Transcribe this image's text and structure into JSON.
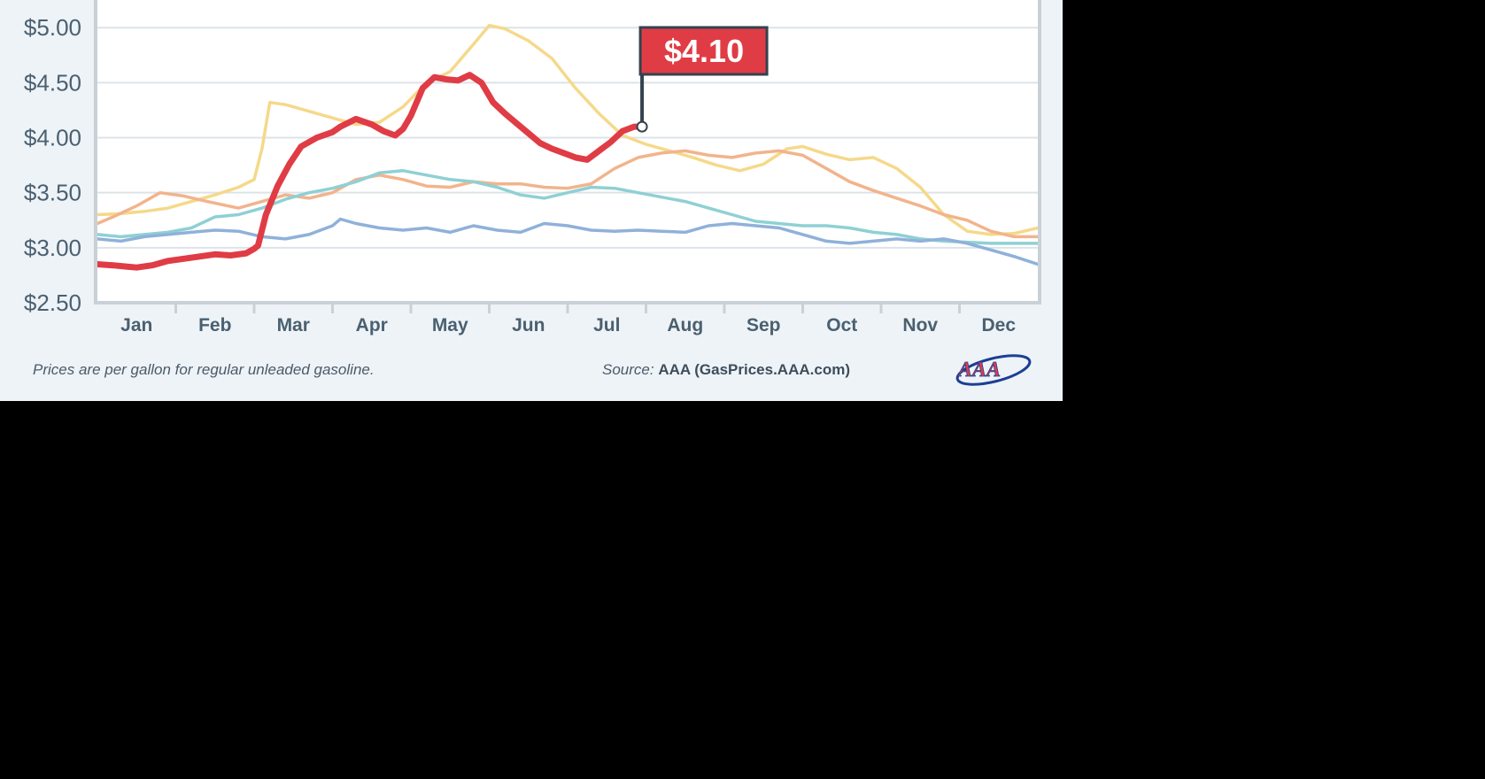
{
  "footer": {
    "note": "Prices are per gallon for regular unleaded gasoline.",
    "source_label": "Source:",
    "source_value": "AAA (GasPrices.AAA.com)",
    "logo_text": "AAA"
  },
  "colors": {
    "current_year": "#e03c45",
    "yellow_series": "#f5d98a",
    "orange_series": "#f2b48c",
    "teal_series": "#8fd0d4",
    "blue_series": "#8fb1da",
    "grid": "#dde3e8",
    "axis": "#c9d1d8",
    "tick_label": "#4a6070",
    "callout_bg": "#e03c45",
    "callout_border": "#34424f",
    "logo_red": "#e03c45",
    "logo_blue": "#1c3f94",
    "panel_bg": "#eef3f8",
    "plot_bg": "#ffffff"
  },
  "chart_data": {
    "type": "line",
    "ylim": [
      2.5,
      5.05
    ],
    "xlim": [
      0,
      12
    ],
    "y_ticks": [
      2.5,
      3.0,
      3.5,
      4.0,
      4.5,
      5.0
    ],
    "y_tick_labels": [
      "$2.50",
      "$3.00",
      "$3.50",
      "$4.00",
      "$4.50",
      "$5.00"
    ],
    "categories": [
      "Jan",
      "Feb",
      "Mar",
      "Apr",
      "May",
      "Jun",
      "Jul",
      "Aug",
      "Sep",
      "Oct",
      "Nov",
      "Dec"
    ],
    "grid": true,
    "series": [
      {
        "key": "yellow",
        "x": [
          0,
          0.3,
          0.6,
          0.9,
          1.2,
          1.5,
          1.8,
          2.0,
          2.1,
          2.2,
          2.4,
          2.7,
          3.0,
          3.3,
          3.6,
          3.9,
          4.2,
          4.5,
          4.8,
          5.0,
          5.2,
          5.5,
          5.8,
          6.1,
          6.4,
          6.7,
          7.0,
          7.3,
          7.6,
          7.9,
          8.2,
          8.5,
          8.8,
          9.0,
          9.3,
          9.6,
          9.9,
          10.2,
          10.5,
          10.8,
          11.1,
          11.4,
          11.7,
          12.0
        ],
        "y": [
          3.3,
          3.31,
          3.33,
          3.36,
          3.42,
          3.48,
          3.55,
          3.62,
          3.9,
          4.32,
          4.3,
          4.24,
          4.18,
          4.12,
          4.14,
          4.28,
          4.5,
          4.6,
          4.85,
          5.02,
          4.99,
          4.88,
          4.72,
          4.45,
          4.22,
          4.02,
          3.94,
          3.88,
          3.82,
          3.75,
          3.7,
          3.76,
          3.9,
          3.92,
          3.85,
          3.8,
          3.82,
          3.72,
          3.55,
          3.3,
          3.15,
          3.12,
          3.13,
          3.18
        ]
      },
      {
        "key": "orange",
        "x": [
          0,
          0.2,
          0.5,
          0.8,
          1.1,
          1.4,
          1.8,
          2.1,
          2.4,
          2.7,
          3.0,
          3.3,
          3.6,
          3.9,
          4.2,
          4.5,
          4.8,
          5.1,
          5.4,
          5.7,
          6.0,
          6.3,
          6.6,
          6.9,
          7.2,
          7.5,
          7.8,
          8.1,
          8.4,
          8.7,
          9.0,
          9.3,
          9.6,
          9.9,
          10.2,
          10.5,
          10.8,
          11.1,
          11.4,
          11.7,
          12.0
        ],
        "y": [
          3.22,
          3.28,
          3.38,
          3.5,
          3.47,
          3.42,
          3.36,
          3.42,
          3.48,
          3.45,
          3.5,
          3.62,
          3.66,
          3.62,
          3.56,
          3.55,
          3.6,
          3.58,
          3.58,
          3.55,
          3.54,
          3.58,
          3.72,
          3.82,
          3.86,
          3.88,
          3.84,
          3.82,
          3.86,
          3.88,
          3.84,
          3.72,
          3.6,
          3.52,
          3.45,
          3.38,
          3.3,
          3.25,
          3.15,
          3.1,
          3.1
        ]
      },
      {
        "key": "teal",
        "x": [
          0,
          0.3,
          0.6,
          0.9,
          1.2,
          1.5,
          1.8,
          2.1,
          2.4,
          2.7,
          3.0,
          3.3,
          3.6,
          3.9,
          4.2,
          4.5,
          4.8,
          5.1,
          5.4,
          5.7,
          6.0,
          6.3,
          6.6,
          6.9,
          7.2,
          7.5,
          7.8,
          8.1,
          8.4,
          8.7,
          9.0,
          9.3,
          9.6,
          9.9,
          10.2,
          10.5,
          10.8,
          11.1,
          11.4,
          11.7,
          12.0
        ],
        "y": [
          3.12,
          3.1,
          3.12,
          3.14,
          3.18,
          3.28,
          3.3,
          3.36,
          3.44,
          3.5,
          3.54,
          3.6,
          3.68,
          3.7,
          3.66,
          3.62,
          3.6,
          3.55,
          3.48,
          3.45,
          3.5,
          3.55,
          3.54,
          3.5,
          3.46,
          3.42,
          3.36,
          3.3,
          3.24,
          3.22,
          3.2,
          3.2,
          3.18,
          3.14,
          3.12,
          3.08,
          3.06,
          3.05,
          3.04,
          3.04,
          3.04
        ]
      },
      {
        "key": "blue",
        "x": [
          0,
          0.3,
          0.6,
          0.9,
          1.2,
          1.5,
          1.8,
          2.1,
          2.4,
          2.7,
          3.0,
          3.1,
          3.3,
          3.6,
          3.9,
          4.2,
          4.5,
          4.8,
          5.1,
          5.4,
          5.7,
          6.0,
          6.3,
          6.6,
          6.9,
          7.2,
          7.5,
          7.8,
          8.1,
          8.4,
          8.7,
          9.0,
          9.3,
          9.6,
          9.9,
          10.2,
          10.5,
          10.8,
          11.1,
          11.4,
          11.7,
          12.0
        ],
        "y": [
          3.08,
          3.06,
          3.1,
          3.12,
          3.14,
          3.16,
          3.15,
          3.1,
          3.08,
          3.12,
          3.2,
          3.26,
          3.22,
          3.18,
          3.16,
          3.18,
          3.14,
          3.2,
          3.16,
          3.14,
          3.22,
          3.2,
          3.16,
          3.15,
          3.16,
          3.15,
          3.14,
          3.2,
          3.22,
          3.2,
          3.18,
          3.12,
          3.06,
          3.04,
          3.06,
          3.08,
          3.06,
          3.08,
          3.04,
          2.98,
          2.92,
          2.85
        ]
      },
      {
        "key": "current",
        "x": [
          0,
          0.2,
          0.35,
          0.5,
          0.7,
          0.9,
          1.1,
          1.3,
          1.5,
          1.7,
          1.9,
          2.0,
          2.05,
          2.15,
          2.3,
          2.45,
          2.6,
          2.8,
          3.0,
          3.1,
          3.3,
          3.5,
          3.65,
          3.8,
          3.9,
          4.0,
          4.15,
          4.3,
          4.45,
          4.6,
          4.75,
          4.9,
          5.05,
          5.2,
          5.35,
          5.5,
          5.65,
          5.8,
          5.95,
          6.1,
          6.25,
          6.4,
          6.55,
          6.7,
          6.85,
          6.95
        ],
        "y": [
          2.85,
          2.84,
          2.83,
          2.82,
          2.84,
          2.88,
          2.9,
          2.92,
          2.94,
          2.93,
          2.95,
          2.99,
          3.02,
          3.3,
          3.56,
          3.76,
          3.92,
          4.0,
          4.05,
          4.1,
          4.17,
          4.12,
          4.06,
          4.02,
          4.08,
          4.2,
          4.45,
          4.55,
          4.53,
          4.52,
          4.57,
          4.5,
          4.32,
          4.22,
          4.13,
          4.04,
          3.95,
          3.9,
          3.86,
          3.82,
          3.8,
          3.88,
          3.96,
          4.06,
          4.1,
          4.1
        ]
      }
    ],
    "callout": {
      "label": "$4.10",
      "value": 4.1,
      "x": 6.95
    }
  }
}
